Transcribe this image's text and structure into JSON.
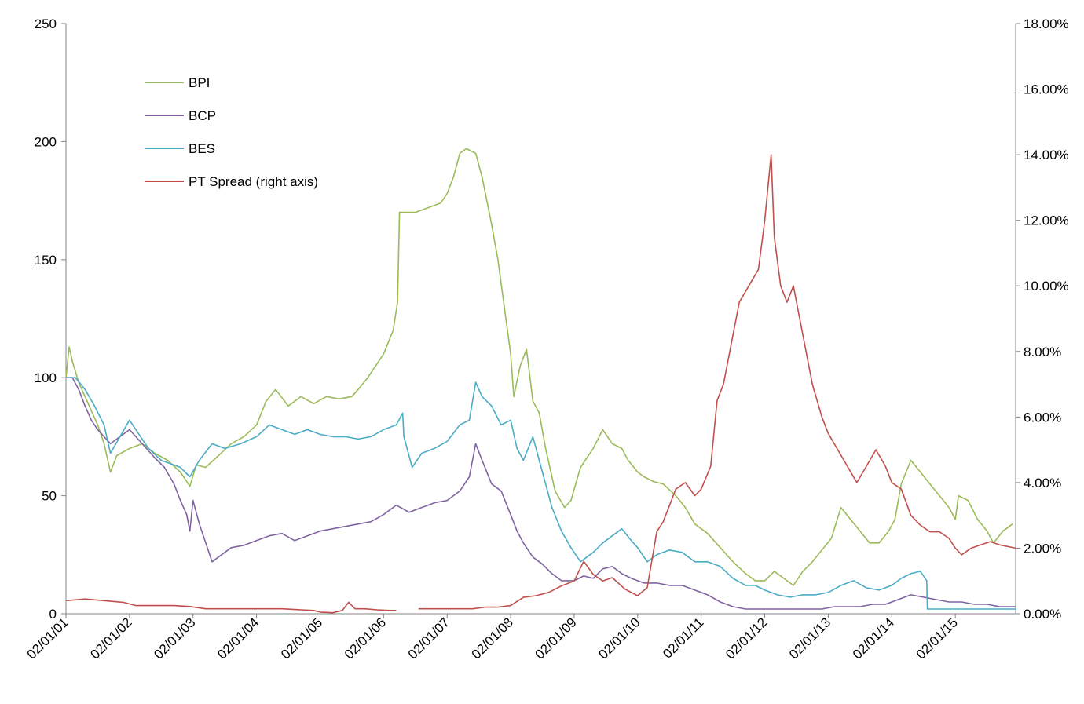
{
  "chart_data": {
    "type": "line",
    "title": "",
    "xlabel": "",
    "ylabel": "",
    "y2label": "",
    "ylim": [
      0,
      250
    ],
    "y2lim": [
      0,
      0.18
    ],
    "yticks": [
      "0",
      "50",
      "100",
      "150",
      "200",
      "250"
    ],
    "y2ticks": [
      "0.00%",
      "2.00%",
      "4.00%",
      "6.00%",
      "8.00%",
      "10.00%",
      "12.00%",
      "14.00%",
      "16.00%",
      "18.00%"
    ],
    "xticks": [
      "02/01/01",
      "02/01/02",
      "02/01/03",
      "02/01/04",
      "02/01/05",
      "02/01/06",
      "02/01/07",
      "02/01/08",
      "02/01/09",
      "02/01/10",
      "02/01/11",
      "02/01/12",
      "02/01/13",
      "02/01/14",
      "02/01/15"
    ],
    "grid": false,
    "legend_position": "top-left",
    "series": [
      {
        "name": "BPI",
        "axis": "left",
        "color": "#9BBB59",
        "x": [
          2001.0,
          2001.05,
          2001.1,
          2001.2,
          2001.3,
          2001.4,
          2001.5,
          2001.6,
          2001.7,
          2001.8,
          2002.0,
          2002.2,
          2002.4,
          2002.6,
          2002.8,
          2002.95,
          2003.05,
          2003.2,
          2003.4,
          2003.6,
          2003.8,
          2004.0,
          2004.15,
          2004.3,
          2004.5,
          2004.7,
          2004.9,
          2005.1,
          2005.3,
          2005.5,
          2005.6,
          2005.75,
          2005.9,
          2006.0,
          2006.15,
          2006.22,
          2006.25,
          2006.3,
          2006.5,
          2006.7,
          2006.9,
          2007.0,
          2007.1,
          2007.2,
          2007.3,
          2007.45,
          2007.55,
          2007.7,
          2007.8,
          2007.9,
          2008.0,
          2008.05,
          2008.15,
          2008.25,
          2008.35,
          2008.45,
          2008.55,
          2008.7,
          2008.85,
          2008.95,
          2009.1,
          2009.3,
          2009.45,
          2009.6,
          2009.75,
          2009.85,
          2010.0,
          2010.1,
          2010.25,
          2010.4,
          2010.6,
          2010.75,
          2010.9,
          2011.1,
          2011.3,
          2011.5,
          2011.7,
          2011.85,
          2012.0,
          2012.15,
          2012.3,
          2012.45,
          2012.6,
          2012.75,
          2012.9,
          2013.05,
          2013.2,
          2013.35,
          2013.5,
          2013.65,
          2013.8,
          2013.95,
          2014.05,
          2014.15,
          2014.3,
          2014.45,
          2014.6,
          2014.75,
          2014.9,
          2015.0,
          2015.05,
          2015.2,
          2015.35,
          2015.5,
          2015.6,
          2015.75,
          2015.9
        ],
        "values": [
          100,
          113,
          107,
          98,
          92,
          86,
          80,
          72,
          60,
          67,
          70,
          72,
          68,
          65,
          60,
          54,
          63,
          62,
          67,
          72,
          75,
          80,
          90,
          95,
          88,
          92,
          89,
          92,
          91,
          92,
          95,
          100,
          106,
          110,
          120,
          132,
          170,
          170,
          170,
          172,
          174,
          178,
          185,
          195,
          197,
          195,
          185,
          165,
          150,
          130,
          110,
          92,
          105,
          112,
          90,
          85,
          70,
          52,
          45,
          48,
          62,
          70,
          78,
          72,
          70,
          65,
          60,
          58,
          56,
          55,
          50,
          45,
          38,
          34,
          28,
          22,
          17,
          14,
          14,
          18,
          15,
          12,
          18,
          22,
          27,
          32,
          45,
          40,
          35,
          30,
          30,
          35,
          40,
          55,
          65,
          60,
          55,
          50,
          45,
          40,
          50,
          48,
          40,
          35,
          30,
          35,
          38
        ]
      },
      {
        "name": "BCP",
        "axis": "left",
        "color": "#8064A2",
        "x": [
          2001.0,
          2001.1,
          2001.2,
          2001.3,
          2001.4,
          2001.5,
          2001.6,
          2001.7,
          2001.85,
          2002.0,
          2002.2,
          2002.4,
          2002.55,
          2002.7,
          2002.8,
          2002.9,
          2002.95,
          2003.0,
          2003.1,
          2003.2,
          2003.3,
          2003.45,
          2003.6,
          2003.8,
          2004.0,
          2004.2,
          2004.4,
          2004.6,
          2004.8,
          2005.0,
          2005.2,
          2005.4,
          2005.6,
          2005.8,
          2006.0,
          2006.2,
          2006.4,
          2006.6,
          2006.8,
          2007.0,
          2007.2,
          2007.35,
          2007.45,
          2007.55,
          2007.7,
          2007.85,
          2008.0,
          2008.1,
          2008.2,
          2008.35,
          2008.5,
          2008.65,
          2008.8,
          2009.0,
          2009.15,
          2009.3,
          2009.45,
          2009.6,
          2009.75,
          2009.9,
          2010.1,
          2010.3,
          2010.5,
          2010.7,
          2010.9,
          2011.1,
          2011.3,
          2011.5,
          2011.7,
          2011.9,
          2012.1,
          2012.3,
          2012.5,
          2012.7,
          2012.9,
          2013.1,
          2013.3,
          2013.5,
          2013.7,
          2013.9,
          2014.0,
          2014.1,
          2014.3,
          2014.5,
          2014.7,
          2014.9,
          2015.1,
          2015.3,
          2015.5,
          2015.7,
          2015.95
        ],
        "values": [
          100,
          100,
          95,
          88,
          82,
          78,
          75,
          72,
          75,
          78,
          72,
          66,
          62,
          55,
          48,
          42,
          35,
          48,
          38,
          30,
          22,
          25,
          28,
          29,
          31,
          33,
          34,
          31,
          33,
          35,
          36,
          37,
          38,
          39,
          42,
          46,
          43,
          45,
          47,
          48,
          52,
          58,
          72,
          65,
          55,
          52,
          42,
          35,
          30,
          24,
          21,
          17,
          14,
          14,
          16,
          15,
          19,
          20,
          17,
          15,
          13,
          13,
          12,
          12,
          10,
          8,
          5,
          3,
          2,
          2,
          2,
          2,
          2,
          2,
          2,
          3,
          3,
          3,
          4,
          4,
          5,
          6,
          8,
          7,
          6,
          5,
          5,
          4,
          4,
          3,
          3
        ]
      },
      {
        "name": "BES",
        "axis": "left",
        "color": "#4BACC6",
        "x": [
          2001.0,
          2001.15,
          2001.3,
          2001.45,
          2001.6,
          2001.7,
          2001.85,
          2002.0,
          2002.15,
          2002.3,
          2002.5,
          2002.7,
          2002.8,
          2002.95,
          2003.1,
          2003.3,
          2003.5,
          2003.75,
          2004.0,
          2004.2,
          2004.4,
          2004.6,
          2004.8,
          2005.0,
          2005.2,
          2005.4,
          2005.6,
          2005.8,
          2006.0,
          2006.2,
          2006.3,
          2006.32,
          2006.45,
          2006.6,
          2006.8,
          2007.0,
          2007.2,
          2007.35,
          2007.45,
          2007.55,
          2007.7,
          2007.85,
          2008.0,
          2008.1,
          2008.2,
          2008.35,
          2008.5,
          2008.65,
          2008.8,
          2008.95,
          2009.1,
          2009.3,
          2009.45,
          2009.6,
          2009.75,
          2009.9,
          2010.0,
          2010.15,
          2010.3,
          2010.5,
          2010.7,
          2010.9,
          2011.1,
          2011.3,
          2011.5,
          2011.7,
          2011.85,
          2012.0,
          2012.2,
          2012.4,
          2012.6,
          2012.8,
          2013.0,
          2013.2,
          2013.4,
          2013.6,
          2013.8,
          2014.0,
          2014.15,
          2014.3,
          2014.45,
          2014.55,
          2014.56,
          2014.8,
          2015.0,
          2015.3,
          2015.6,
          2015.95
        ],
        "values": [
          100,
          100,
          95,
          88,
          80,
          68,
          75,
          82,
          76,
          70,
          65,
          63,
          62,
          58,
          65,
          72,
          70,
          72,
          75,
          80,
          78,
          76,
          78,
          76,
          75,
          75,
          74,
          75,
          78,
          80,
          85,
          75,
          62,
          68,
          70,
          73,
          80,
          82,
          98,
          92,
          88,
          80,
          82,
          70,
          65,
          75,
          60,
          45,
          35,
          28,
          22,
          26,
          30,
          33,
          36,
          31,
          28,
          22,
          25,
          27,
          26,
          22,
          22,
          20,
          15,
          12,
          12,
          10,
          8,
          7,
          8,
          8,
          9,
          12,
          14,
          11,
          10,
          12,
          15,
          17,
          18,
          14,
          2,
          2,
          2,
          2,
          2,
          2
        ]
      },
      {
        "name": "PT Spread (right axis)",
        "axis": "right",
        "color": "#C0504D",
        "x": [
          2001.0,
          2001.3,
          2001.6,
          2001.9,
          2002.1,
          2002.4,
          2002.7,
          2002.95,
          2003.2,
          2003.5,
          2003.8,
          2004.1,
          2004.4,
          2004.7,
          2004.9,
          2005.0,
          2005.2,
          2005.35,
          2005.45,
          2005.55,
          2005.7,
          2005.9,
          2006.1,
          2006.2,
          2006.21,
          2006.54,
          2006.55,
          2006.8,
          2007.0,
          2007.2,
          2007.4,
          2007.6,
          2007.8,
          2008.0,
          2008.2,
          2008.4,
          2008.6,
          2008.8,
          2009.0,
          2009.15,
          2009.3,
          2009.45,
          2009.6,
          2009.8,
          2010.0,
          2010.15,
          2010.3,
          2010.4,
          2010.5,
          2010.6,
          2010.75,
          2010.9,
          2011.0,
          2011.15,
          2011.25,
          2011.35,
          2011.5,
          2011.6,
          2011.75,
          2011.9,
          2012.0,
          2012.05,
          2012.1,
          2012.15,
          2012.25,
          2012.35,
          2012.45,
          2012.6,
          2012.75,
          2012.9,
          2013.0,
          2013.15,
          2013.3,
          2013.45,
          2013.6,
          2013.75,
          2013.9,
          2014.0,
          2014.15,
          2014.3,
          2014.45,
          2014.6,
          2014.75,
          2014.9,
          2015.0,
          2015.1,
          2015.25,
          2015.4,
          2015.55,
          2015.7,
          2015.95
        ],
        "values": [
          0.004,
          0.0045,
          0.004,
          0.0035,
          0.0025,
          0.0025,
          0.0025,
          0.0022,
          0.0015,
          0.0015,
          0.0015,
          0.0015,
          0.0015,
          0.0012,
          0.001,
          0.0005,
          0.0003,
          0.001,
          0.0035,
          0.0015,
          0.0015,
          0.0012,
          0.001,
          0.001,
          null,
          null,
          0.0015,
          0.0015,
          0.0015,
          0.0015,
          0.0015,
          0.002,
          0.002,
          0.0025,
          0.005,
          0.0055,
          0.0065,
          0.0085,
          0.01,
          0.016,
          0.012,
          0.01,
          0.011,
          0.0075,
          0.0055,
          0.008,
          0.025,
          0.028,
          0.033,
          0.038,
          0.04,
          0.036,
          0.038,
          0.045,
          0.065,
          0.07,
          0.085,
          0.095,
          0.1,
          0.105,
          0.12,
          0.13,
          0.14,
          0.115,
          0.1,
          0.095,
          0.1,
          0.085,
          0.07,
          0.06,
          0.055,
          0.05,
          0.045,
          0.04,
          0.045,
          0.05,
          0.045,
          0.04,
          0.038,
          0.03,
          0.027,
          0.025,
          0.025,
          0.023,
          0.02,
          0.018,
          0.02,
          0.021,
          0.022,
          0.021,
          0.02
        ]
      }
    ]
  }
}
